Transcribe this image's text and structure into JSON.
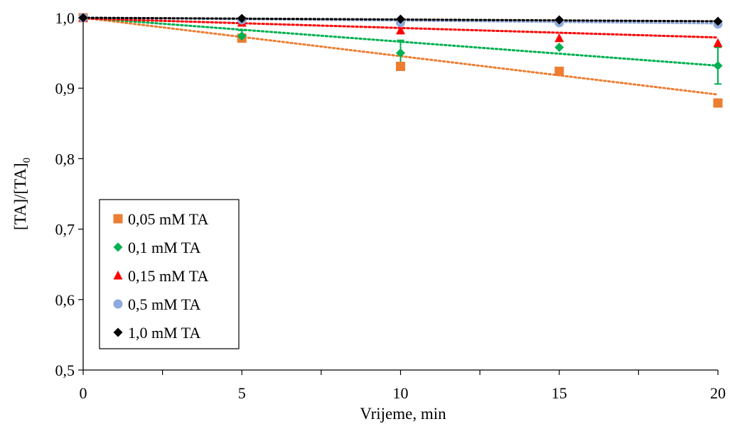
{
  "chart_data": {
    "type": "scatter",
    "xlabel": "Vrijeme, min",
    "ylabel": "[TA]/[TA]",
    "ylabel_subscript": "0",
    "xlim": [
      0,
      20
    ],
    "ylim": [
      0.5,
      1.0
    ],
    "x_ticks": [
      0,
      5,
      10,
      15,
      20
    ],
    "x_tick_labels": [
      "0",
      "5",
      "10",
      "15",
      "20"
    ],
    "y_ticks": [
      0.5,
      0.6,
      0.7,
      0.8,
      0.9,
      1.0
    ],
    "y_tick_labels": [
      "0,5",
      "0,6",
      "0,7",
      "0,8",
      "0,9",
      "1,0"
    ],
    "grid": false,
    "legend_position": "bottom-left",
    "trendlines": "dotted linear fit per series",
    "series": [
      {
        "name": "0,05 mM TA",
        "color": "#ED7D31",
        "marker": "square",
        "x": [
          0,
          5,
          10,
          15,
          20
        ],
        "y": [
          1.0,
          0.971,
          0.931,
          0.924,
          0.879
        ],
        "err": [
          0,
          0,
          0,
          0,
          0
        ],
        "fit": [
          1.0,
          0.891
        ]
      },
      {
        "name": "0,1 mM TA",
        "color": "#00B050",
        "marker": "diamond",
        "x": [
          0,
          5,
          10,
          15,
          20
        ],
        "y": [
          1.0,
          0.974,
          0.95,
          0.958,
          0.932
        ],
        "err": [
          0,
          0.008,
          0.018,
          0,
          0.026
        ],
        "fit": [
          1.0,
          0.932
        ]
      },
      {
        "name": "0,15 mM TA",
        "color": "#FF0000",
        "marker": "triangle",
        "x": [
          0,
          5,
          10,
          15,
          20
        ],
        "y": [
          1.0,
          0.993,
          0.982,
          0.971,
          0.964
        ],
        "err": [
          0,
          0,
          0,
          0,
          0
        ],
        "fit": [
          0.999,
          0.972
        ]
      },
      {
        "name": "0,5 mM TA",
        "color": "#8EA9DB",
        "marker": "circle",
        "x": [
          0,
          5,
          10,
          15,
          20
        ],
        "y": [
          1.0,
          0.997,
          0.993,
          0.993,
          0.991
        ],
        "err": [
          0,
          0,
          0,
          0,
          0
        ],
        "fit": [
          1.0,
          0.992
        ]
      },
      {
        "name": "1,0 mM TA",
        "color": "#000000",
        "marker": "diamond",
        "x": [
          0,
          5,
          10,
          15,
          20
        ],
        "y": [
          1.0,
          0.999,
          0.998,
          0.997,
          0.995
        ],
        "err": [
          0,
          0,
          0,
          0,
          0
        ],
        "fit": [
          1.0,
          0.995
        ]
      }
    ]
  }
}
